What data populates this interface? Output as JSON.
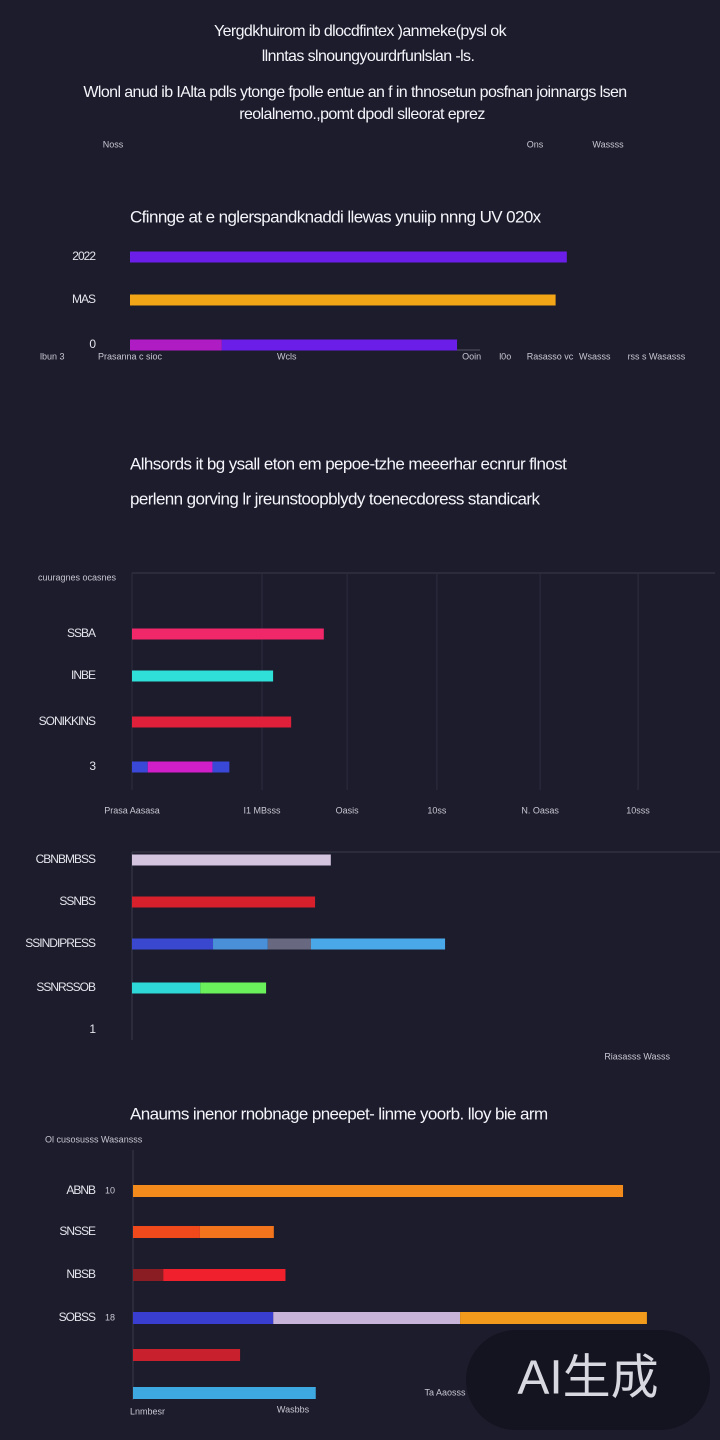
{
  "header": {
    "title": [
      "Yergdkhuirom ib dlocdfintex )anmeke(pysl ok",
      "llnntas slnoungyourdrfunlslan -ls."
    ],
    "subtitle": [
      "Wlonl anud ib IAlta pdls ytonge fpolle entue an f in thnosetun posfnan joinnargs lsen",
      "reolalnemo.,pomt dpodl slleorat eprez"
    ],
    "labels": [
      "Noss",
      "Ons",
      "Wassss"
    ]
  },
  "chart_data": [
    {
      "type": "bar",
      "orientation": "horizontal",
      "title": [
        "Cfinnge at e nglerspandknaddi llewas ynuiip nnng UV 020x"
      ],
      "categories": [
        "2022",
        "MAS",
        "0"
      ],
      "series": [
        {
          "colors": [
            "#6a1ee8",
            "#f2a516",
            "#b01cc4"
          ],
          "values": [
            78,
            76,
            16.4
          ]
        },
        {
          "colors": [
            null,
            null,
            "#6a1ee8"
          ],
          "values": [
            null,
            null,
            42
          ]
        }
      ],
      "xlim": [
        0,
        100
      ],
      "xticks": [
        {
          "value": 0,
          "label": "Prasanna c sioc"
        },
        {
          "value": 28,
          "label": "Wcls"
        },
        {
          "value": 61,
          "label": "Ooin"
        },
        {
          "value": 67,
          "label": "l0o"
        },
        {
          "value": 75,
          "label": "Rasasso vc"
        },
        {
          "value": 83,
          "label": "Wsasss"
        },
        {
          "value": 94,
          "label": "rss s Wasasss"
        }
      ],
      "xlabel": "lbun 3",
      "grid": false
    },
    {
      "type": "bar",
      "orientation": "horizontal",
      "title": [
        "Alhsords it bg ysall eton em pepoe-tzhe meeerhar ecnrur flnost",
        "perlenn gorving lr jreunstoopblydy toenecdoress standicark"
      ],
      "ylabel": "cuuragnes ocasnes",
      "categories": [
        "SSBA",
        "INBE",
        "SONIKKINS",
        "3"
      ],
      "series": [
        {
          "colors": [
            "#f0286a",
            "#2ee0d8",
            "#e0203a",
            "#3a48d8"
          ],
          "values": [
            32.9,
            24.2,
            27.3,
            2.7
          ]
        },
        {
          "colors": [
            null,
            null,
            null,
            "#d01ec8"
          ],
          "values": [
            null,
            null,
            null,
            11.1
          ]
        },
        {
          "colors": [
            null,
            null,
            null,
            "#3a48d8"
          ],
          "values": [
            null,
            null,
            null,
            2.9
          ]
        }
      ],
      "xlim": [
        0,
        100
      ],
      "xticks": [
        {
          "value": 0,
          "label": "Prasa Aasasa"
        },
        {
          "value": 22.3,
          "label": "I1 MBsss"
        },
        {
          "value": 36.9,
          "label": "Oasis"
        },
        {
          "value": 52.3,
          "label": "10ss"
        },
        {
          "value": 70,
          "label": "N. Oasas"
        },
        {
          "value": 86.8,
          "label": "10sss"
        }
      ],
      "grid": true
    },
    {
      "type": "bar",
      "orientation": "horizontal",
      "categories": [
        "CBNBMBSS",
        "SSNBS",
        "SSINDIPRESS",
        "SSNRSSOB",
        "1"
      ],
      "series": [
        {
          "colors": [
            "#d4c4e0",
            "#d8202c",
            "#3a48d0",
            "#2ed8d8",
            null
          ],
          "values": [
            34.1,
            31.4,
            13.9,
            11.7,
            null
          ]
        },
        {
          "colors": [
            null,
            null,
            "#4a90d8",
            "#6af05a",
            null
          ],
          "values": [
            null,
            null,
            9.4,
            11.3,
            null
          ]
        },
        {
          "colors": [
            null,
            null,
            "#686880",
            null,
            null
          ],
          "values": [
            null,
            null,
            7.4,
            null,
            null
          ]
        },
        {
          "colors": [
            null,
            null,
            "#4aa8e8",
            null,
            null
          ],
          "values": [
            null,
            null,
            23.0,
            null,
            null
          ]
        }
      ],
      "xlim": [
        0,
        100
      ],
      "xlabel": "Riasasss Wasss",
      "grid": false
    },
    {
      "type": "bar",
      "orientation": "horizontal",
      "title": [
        "Anaums inenor rnobnage pneepet- linme yoorb. lloy bie arm"
      ],
      "ylabel": "Ol cusosusss Wasansss",
      "categories": [
        "ABNB",
        "SNSSE",
        "NBSB",
        "SOBSS",
        null,
        null
      ],
      "series": [
        {
          "colors": [
            "#f28a1c",
            "#f04a1c",
            "#8a1c24",
            "#3a3ed0",
            "#c8202c",
            "#3ea8e0"
          ],
          "values": [
            84.2,
            11.5,
            5.2,
            24.1,
            18.4,
            31.4
          ]
        },
        {
          "colors": [
            null,
            "#f2741c",
            "#f0202c",
            "#c8b4d8",
            null,
            null
          ],
          "values": [
            null,
            12.7,
            21.0,
            32.1,
            null,
            null
          ]
        },
        {
          "colors": [
            null,
            null,
            null,
            "#f29a1c",
            null,
            null
          ],
          "values": [
            null,
            null,
            null,
            32.1,
            null,
            null
          ]
        }
      ],
      "xlim": [
        0,
        100
      ],
      "xlabel": "Lnmbesr",
      "annotations": [
        "10",
        "18",
        "Wasbbs",
        "Ta Aaosss"
      ],
      "grid": false
    }
  ],
  "watermark": "AI生成"
}
